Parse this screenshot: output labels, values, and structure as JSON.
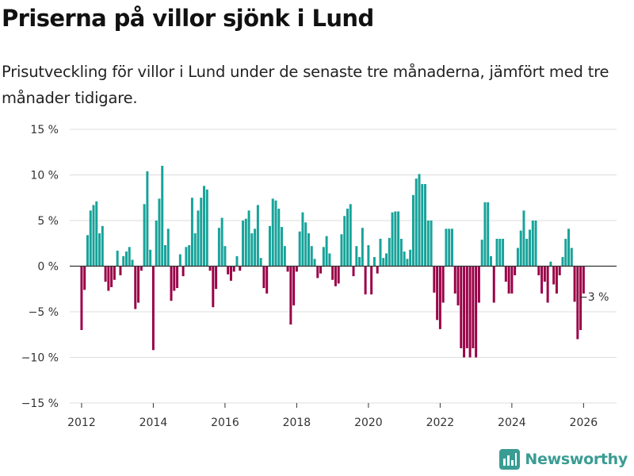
{
  "title": "Priserna på villor sjönk i Lund",
  "subtitle": "Prisutveckling för villor i Lund under de senaste tre månaderna, jämfört med tre månader tidigare.",
  "brand": {
    "name": "Newsworthy",
    "color": "#3a9c92"
  },
  "colors": {
    "positive": "#17a39a",
    "negative": "#9a0047",
    "grid": "#dddddd",
    "zero": "#333333"
  },
  "chart_data": {
    "type": "bar",
    "title": "Priserna på villor sjönk i Lund",
    "xlabel": "",
    "ylabel": "",
    "ylim": [
      -15,
      15
    ],
    "yticks": [
      15,
      10,
      5,
      0,
      -5,
      -10,
      -15
    ],
    "ytick_labels": [
      "15 %",
      "10 %",
      "5 %",
      "0 %",
      "−5 %",
      "−10 %",
      "−15 %"
    ],
    "xlim": [
      2011.67,
      2026.92
    ],
    "xticks": [
      2012,
      2014,
      2016,
      2018,
      2020,
      2022,
      2024,
      2026
    ],
    "xtick_labels": [
      "2012",
      "2014",
      "2016",
      "2018",
      "2020",
      "2022",
      "2024",
      "2026"
    ],
    "grid": true,
    "annotation": {
      "x": 2026.17,
      "y": -3,
      "label": "−3 %"
    },
    "start": [
      2012,
      1
    ],
    "values": [
      -7,
      -2.6,
      3.4,
      6.1,
      6.7,
      7.1,
      3.6,
      4.4,
      -1.7,
      -2.7,
      -2.3,
      -1.5,
      1.7,
      -1,
      1.1,
      1.6,
      2.1,
      0.7,
      -4.7,
      -4,
      -0.5,
      6.8,
      10.4,
      1.8,
      -9.2,
      5,
      7.4,
      11,
      2.3,
      4.1,
      -3.8,
      -2.7,
      -2.4,
      1.3,
      -1.1,
      2.1,
      2.3,
      7.5,
      3.6,
      6.1,
      7.5,
      8.8,
      8.4,
      -0.5,
      -4.5,
      -2.5,
      4.2,
      5.3,
      2.2,
      -0.9,
      -1.6,
      -0.6,
      1.1,
      -0.5,
      5,
      5.2,
      6.1,
      3.6,
      4.1,
      6.7,
      0.9,
      -2.4,
      -3,
      4.4,
      7.4,
      7.2,
      6.3,
      4.3,
      2.2,
      -0.6,
      -6.4,
      -4.3,
      -0.6,
      3.8,
      5.9,
      4.8,
      3.6,
      2.2,
      0.8,
      -1.3,
      -0.8,
      2.1,
      3.3,
      1.4,
      -1.5,
      -2.2,
      -1.9,
      3.5,
      5.5,
      6.3,
      6.8,
      -1.1,
      2.2,
      1,
      4.2,
      -3.1,
      2.3,
      -3.1,
      1,
      -0.8,
      3,
      0.9,
      1.4,
      3.1,
      5.9,
      6,
      6,
      3,
      1.6,
      0.8,
      1.8,
      7.8,
      9.6,
      10.1,
      9,
      9,
      5,
      5,
      -2.9,
      -5.9,
      -6.9,
      -4,
      4.1,
      4.1,
      4.1,
      -3,
      -4.3,
      -9,
      -10,
      -9,
      -10,
      -9,
      -10,
      -4,
      2.9,
      7,
      7,
      1.1,
      -4,
      3,
      3,
      3,
      -1.7,
      -3,
      -3,
      -1,
      2,
      3.9,
      6.1,
      3,
      4,
      5,
      5,
      -1,
      -3,
      -1.7,
      -4,
      0.5,
      -2,
      -3,
      -1,
      1,
      3,
      4.1,
      2,
      -3.9,
      -8,
      -7,
      -3
    ]
  }
}
